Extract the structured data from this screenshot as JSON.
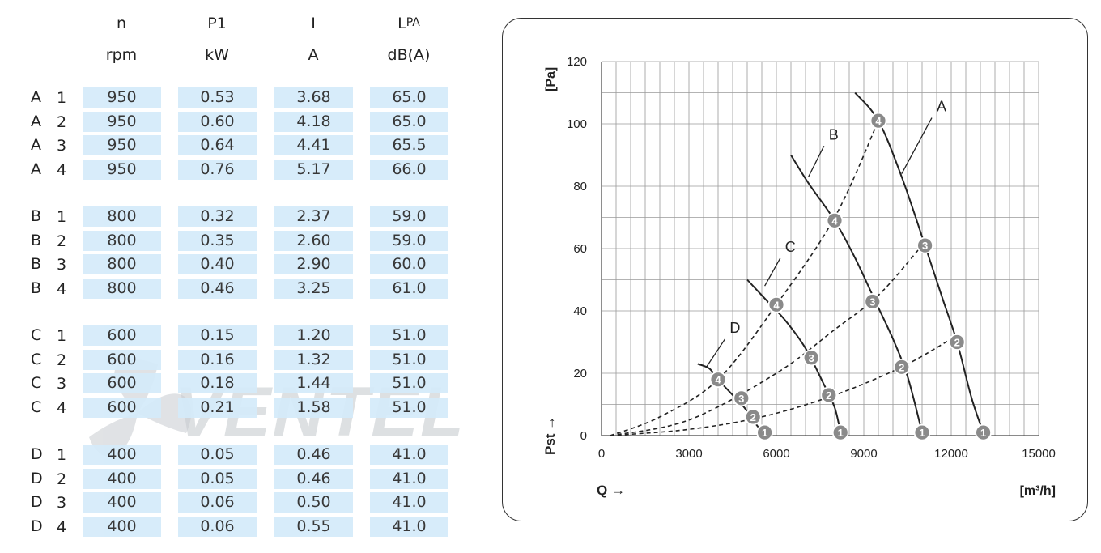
{
  "table": {
    "headers": [
      {
        "name": "n",
        "unit": "rpm"
      },
      {
        "name": "P1",
        "unit": "kW"
      },
      {
        "name": "I",
        "unit": "A"
      },
      {
        "name": "L",
        "sub": "PA",
        "unit": "dB(A)"
      }
    ],
    "groups": [
      {
        "label": "A",
        "rows": [
          {
            "step": "1",
            "n": "950",
            "p1": "0.53",
            "i": "3.68",
            "lpa": "65.0"
          },
          {
            "step": "2",
            "n": "950",
            "p1": "0.60",
            "i": "4.18",
            "lpa": "65.0"
          },
          {
            "step": "3",
            "n": "950",
            "p1": "0.64",
            "i": "4.41",
            "lpa": "65.5"
          },
          {
            "step": "4",
            "n": "950",
            "p1": "0.76",
            "i": "5.17",
            "lpa": "66.0"
          }
        ]
      },
      {
        "label": "B",
        "rows": [
          {
            "step": "1",
            "n": "800",
            "p1": "0.32",
            "i": "2.37",
            "lpa": "59.0"
          },
          {
            "step": "2",
            "n": "800",
            "p1": "0.35",
            "i": "2.60",
            "lpa": "59.0"
          },
          {
            "step": "3",
            "n": "800",
            "p1": "0.40",
            "i": "2.90",
            "lpa": "60.0"
          },
          {
            "step": "4",
            "n": "800",
            "p1": "0.46",
            "i": "3.25",
            "lpa": "61.0"
          }
        ]
      },
      {
        "label": "C",
        "rows": [
          {
            "step": "1",
            "n": "600",
            "p1": "0.15",
            "i": "1.20",
            "lpa": "51.0"
          },
          {
            "step": "2",
            "n": "600",
            "p1": "0.16",
            "i": "1.32",
            "lpa": "51.0"
          },
          {
            "step": "3",
            "n": "600",
            "p1": "0.18",
            "i": "1.44",
            "lpa": "51.0"
          },
          {
            "step": "4",
            "n": "600",
            "p1": "0.21",
            "i": "1.58",
            "lpa": "51.0"
          }
        ]
      },
      {
        "label": "D",
        "rows": [
          {
            "step": "1",
            "n": "400",
            "p1": "0.05",
            "i": "0.46",
            "lpa": "41.0"
          },
          {
            "step": "2",
            "n": "400",
            "p1": "0.05",
            "i": "0.46",
            "lpa": "41.0"
          },
          {
            "step": "3",
            "n": "400",
            "p1": "0.06",
            "i": "0.50",
            "lpa": "41.0"
          },
          {
            "step": "4",
            "n": "400",
            "p1": "0.06",
            "i": "0.55",
            "lpa": "41.0"
          }
        ]
      }
    ]
  },
  "watermark": {
    "text": "VENTEL",
    "color": "#c8ccd0"
  },
  "chart_data": {
    "type": "line",
    "xlabel": "Q →",
    "xunit": "[m³/h]",
    "ylabel": "Pst →",
    "yunit": "[Pa]",
    "xlim": [
      0,
      15000
    ],
    "ylim": [
      0,
      120
    ],
    "xticks": [
      0,
      3000,
      6000,
      9000,
      12000,
      15000
    ],
    "yticks": [
      0,
      20,
      40,
      60,
      80,
      100,
      120
    ],
    "grid": true,
    "series": [
      {
        "name": "A",
        "style": "solid",
        "x": [
          8700,
          9500,
          10300,
          11100,
          11700,
          12200,
          12700,
          13100
        ],
        "y": [
          110,
          101,
          83,
          61,
          44,
          30,
          12,
          1
        ]
      },
      {
        "name": "B",
        "style": "solid",
        "x": [
          6500,
          7100,
          8000,
          8700,
          9400,
          10000,
          10500,
          11000
        ],
        "y": [
          90,
          81,
          69,
          57,
          43,
          31,
          19,
          1
        ]
      },
      {
        "name": "C",
        "style": "solid",
        "x": [
          5000,
          5600,
          6300,
          7000,
          7600,
          8000,
          8200
        ],
        "y": [
          50,
          44,
          37,
          28,
          17,
          9,
          1
        ]
      },
      {
        "name": "D",
        "style": "solid",
        "x": [
          3300,
          3700,
          4000,
          4500,
          4900,
          5200,
          5400,
          5600
        ],
        "y": [
          23,
          21.5,
          18,
          13,
          9,
          5,
          2.5,
          1
        ]
      }
    ],
    "system_curves": [
      {
        "style": "dashed",
        "x": [
          300,
          2000,
          4000,
          6000,
          8000,
          9500
        ],
        "y": [
          0,
          6,
          18,
          42,
          70,
          101
        ]
      },
      {
        "style": "dashed",
        "x": [
          300,
          3000,
          6000,
          8000,
          9500,
          11000
        ],
        "y": [
          0,
          5,
          20,
          34,
          45,
          61
        ]
      },
      {
        "style": "dashed",
        "x": [
          300,
          3000,
          5500,
          8000,
          10300,
          12000
        ],
        "y": [
          0,
          2,
          6,
          13,
          22,
          31
        ]
      }
    ],
    "operating_points": [
      {
        "curve": "A",
        "label": "1",
        "x": 13100,
        "y": 1
      },
      {
        "curve": "A",
        "label": "2",
        "x": 12200,
        "y": 30
      },
      {
        "curve": "A",
        "label": "3",
        "x": 11100,
        "y": 61
      },
      {
        "curve": "A",
        "label": "4",
        "x": 9500,
        "y": 101
      },
      {
        "curve": "B",
        "label": "1",
        "x": 11000,
        "y": 1
      },
      {
        "curve": "B",
        "label": "2",
        "x": 10300,
        "y": 22
      },
      {
        "curve": "B",
        "label": "3",
        "x": 9300,
        "y": 43
      },
      {
        "curve": "B",
        "label": "4",
        "x": 8000,
        "y": 69
      },
      {
        "curve": "C",
        "label": "1",
        "x": 8200,
        "y": 1
      },
      {
        "curve": "C",
        "label": "2",
        "x": 7800,
        "y": 13
      },
      {
        "curve": "C",
        "label": "3",
        "x": 7200,
        "y": 25
      },
      {
        "curve": "C",
        "label": "4",
        "x": 6000,
        "y": 42
      },
      {
        "curve": "D",
        "label": "1",
        "x": 5600,
        "y": 1
      },
      {
        "curve": "D",
        "label": "2",
        "x": 5200,
        "y": 6
      },
      {
        "curve": "D",
        "label": "3",
        "x": 4800,
        "y": 12
      },
      {
        "curve": "D",
        "label": "4",
        "x": 4000,
        "y": 18
      }
    ],
    "curve_labels": [
      {
        "text": "A",
        "x": 11500,
        "y": 104,
        "lx": 10300,
        "ly": 84
      },
      {
        "text": "B",
        "x": 7800,
        "y": 95,
        "lx": 7100,
        "ly": 83
      },
      {
        "text": "C",
        "x": 6300,
        "y": 59,
        "lx": 5600,
        "ly": 48
      },
      {
        "text": "D",
        "x": 4400,
        "y": 33,
        "lx": 3600,
        "ly": 22
      }
    ]
  }
}
